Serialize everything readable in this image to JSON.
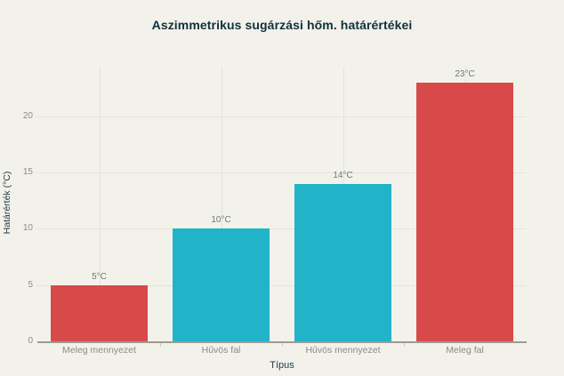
{
  "page": {
    "background": "#f2f1ea"
  },
  "chart_data": {
    "type": "bar",
    "title": "Aszimmetrikus sugárzási hőm. határértékei",
    "xlabel": "Típus",
    "ylabel": "Határérték (°C)",
    "categories": [
      "Meleg mennyezet",
      "Hűvös fal",
      "Hűvös mennyezet",
      "Meleg fal"
    ],
    "values": [
      5,
      10,
      14,
      23
    ],
    "value_labels": [
      "5°C",
      "10°C",
      "14°C",
      "23°C"
    ],
    "bar_colors": [
      "#d84a4a",
      "#21b4c8",
      "#21b4c8",
      "#d84a4a"
    ],
    "yticks": [
      0,
      5,
      10,
      15,
      20
    ],
    "ylim": [
      0,
      24.4
    ],
    "grid": true,
    "legend": false,
    "colors": {
      "title": "#10323c",
      "axis_title": "#1d3a44",
      "tick_label": "#8b8b85",
      "value_label": "#6f7a78",
      "gridline": "#e4e3db",
      "axis_line": "#9b9b94",
      "tick_mark": "#c9c8c1"
    }
  }
}
